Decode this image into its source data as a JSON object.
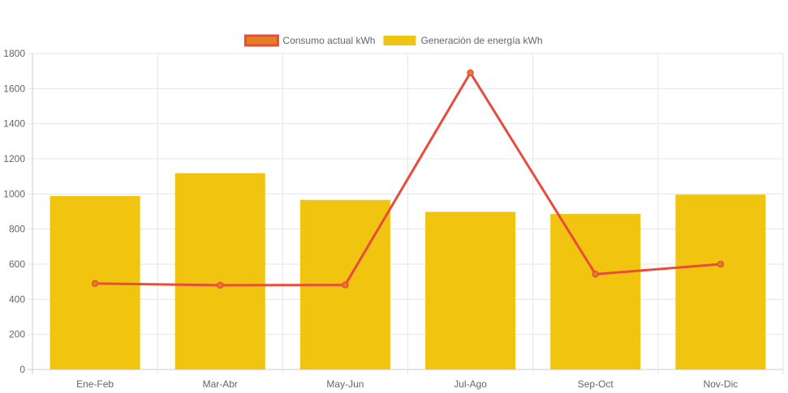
{
  "chart_data": {
    "type": "bar",
    "categories": [
      "Ene-Feb",
      "Mar-Abr",
      "May-Jun",
      "Jul-Ago",
      "Sep-Oct",
      "Nov-Dic"
    ],
    "series": [
      {
        "name": "Consumo actual kWh",
        "type": "line",
        "values": [
          490,
          480,
          482,
          1690,
          543,
          600
        ],
        "color": "#e74c3c",
        "fill": "#e67e22"
      },
      {
        "name": "Generación de energía kWh",
        "type": "bar",
        "values": [
          988,
          1118,
          966,
          898,
          886,
          996
        ],
        "color": "#f1c40f"
      }
    ],
    "ylim": [
      0,
      1800
    ],
    "yticks": [
      0,
      200,
      400,
      600,
      800,
      1000,
      1200,
      1400,
      1600,
      1800
    ],
    "grid": true,
    "legend": "top-center"
  }
}
